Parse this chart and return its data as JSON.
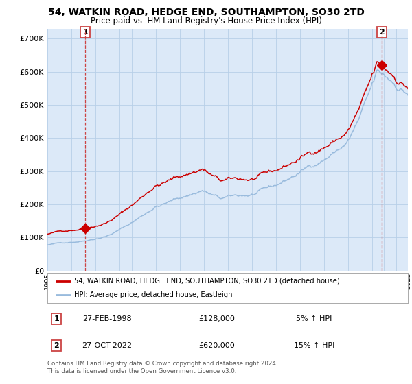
{
  "title": "54, WATKIN ROAD, HEDGE END, SOUTHAMPTON, SO30 2TD",
  "subtitle": "Price paid vs. HM Land Registry's House Price Index (HPI)",
  "fig_bg_color": "#ffffff",
  "plot_bg_color": "#dce9f8",
  "grid_color": "#b8cfe8",
  "red_line_color": "#cc0000",
  "blue_line_color": "#99bbdd",
  "marker_color": "#cc0000",
  "dashed_line_color": "#cc4444",
  "ylim": [
    0,
    730000
  ],
  "yticks": [
    0,
    100000,
    200000,
    300000,
    400000,
    500000,
    600000,
    700000
  ],
  "ytick_labels": [
    "£0",
    "£100K",
    "£200K",
    "£300K",
    "£400K",
    "£500K",
    "£600K",
    "£700K"
  ],
  "year_start": 1995,
  "year_end": 2025,
  "sale1_year": 1998.15,
  "sale1_price": 128000,
  "sale2_year": 2022.82,
  "sale2_price": 620000,
  "legend_line1": "54, WATKIN ROAD, HEDGE END, SOUTHAMPTON, SO30 2TD (detached house)",
  "legend_line2": "HPI: Average price, detached house, Eastleigh",
  "table_row1_num": "1",
  "table_row1_date": "27-FEB-1998",
  "table_row1_price": "£128,000",
  "table_row1_hpi": "5% ↑ HPI",
  "table_row2_num": "2",
  "table_row2_date": "27-OCT-2022",
  "table_row2_price": "£620,000",
  "table_row2_hpi": "15% ↑ HPI",
  "footnote": "Contains HM Land Registry data © Crown copyright and database right 2024.\nThis data is licensed under the Open Government Licence v3.0."
}
